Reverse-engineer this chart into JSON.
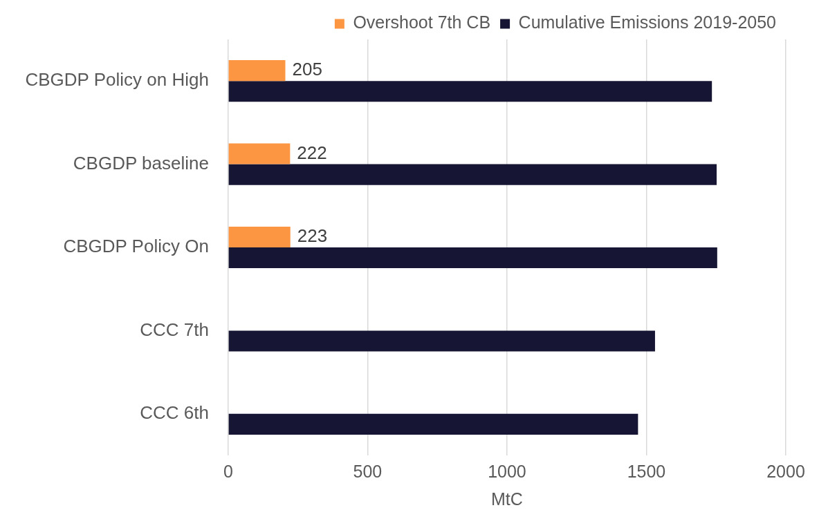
{
  "chart_data": {
    "type": "bar",
    "orientation": "horizontal",
    "xlabel": "MtC",
    "categories": [
      "CBGDP Policy on High",
      "CBGDP baseline",
      "CBGDP Policy On",
      "CCC 7th",
      "CCC 6th"
    ],
    "series": [
      {
        "name": "Overshoot 7th CB",
        "color": "#fd9643",
        "values": [
          205,
          222,
          223,
          null,
          null
        ],
        "value_labels": [
          "205",
          "222",
          "223",
          null,
          null
        ]
      },
      {
        "name": "Cumulative Emissions 2019-2050",
        "color": "#161634",
        "values": [
          1735,
          1752,
          1754,
          1531,
          1470
        ]
      }
    ],
    "xlim": [
      0,
      2000
    ],
    "xticks": [
      0,
      500,
      1000,
      1500,
      2000
    ],
    "grid": "x",
    "legend": "top"
  }
}
